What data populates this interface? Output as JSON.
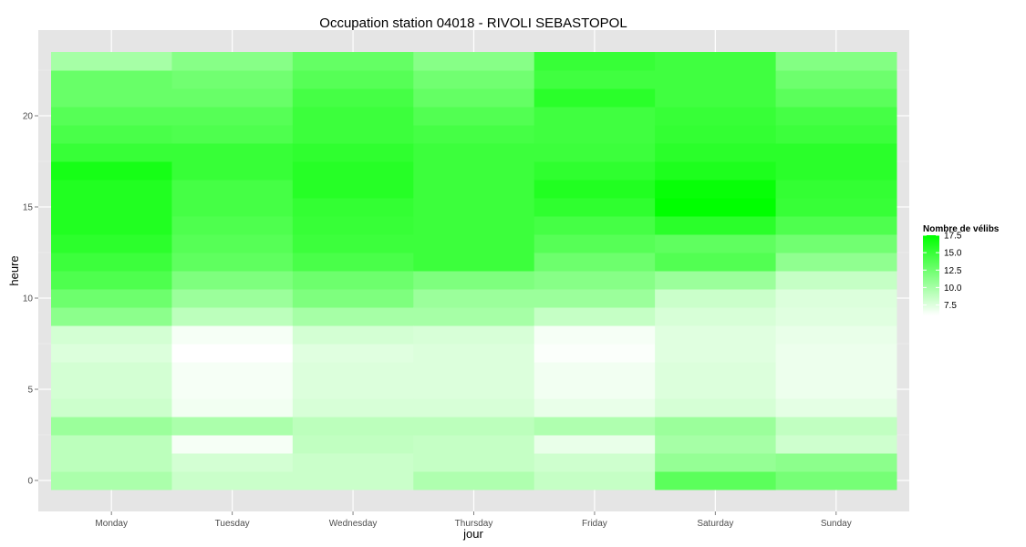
{
  "chart_data": {
    "type": "heatmap",
    "title": "Occupation station 04018 - RIVOLI SEBASTOPOL",
    "xlabel": "jour",
    "ylabel": "heure",
    "x_categories": [
      "Monday",
      "Tuesday",
      "Wednesday",
      "Thursday",
      "Friday",
      "Saturday",
      "Sunday"
    ],
    "y_categories": [
      0,
      1,
      2,
      3,
      4,
      5,
      6,
      7,
      8,
      9,
      10,
      11,
      12,
      13,
      14,
      15,
      16,
      17,
      18,
      19,
      20,
      21,
      22,
      23
    ],
    "y_ticks": [
      0,
      5,
      10,
      15,
      20
    ],
    "ylim": [
      -0.5,
      23.5
    ],
    "grid": true,
    "legend": {
      "title": "Nombre de vélibs",
      "position": "right",
      "min": 6,
      "max": 17.5,
      "breaks": [
        17.5,
        15.0,
        12.5,
        10.0,
        7.5
      ],
      "low_color": "#ffffff",
      "high_color": "#00ff00"
    },
    "values": {
      "Monday": [
        9.8,
        9.0,
        9.0,
        10.5,
        8.3,
        8.0,
        8.0,
        7.6,
        8.0,
        11.2,
        12.6,
        14.0,
        14.8,
        15.5,
        16.0,
        16.0,
        16.0,
        16.5,
        15.0,
        14.2,
        13.6,
        12.8,
        12.8,
        10.0
      ],
      "Tuesday": [
        8.4,
        8.0,
        6.4,
        9.8,
        6.6,
        6.4,
        6.4,
        6.0,
        6.4,
        9.0,
        10.5,
        11.8,
        13.2,
        13.6,
        14.0,
        14.4,
        14.4,
        15.0,
        15.0,
        14.0,
        13.6,
        12.8,
        12.4,
        11.4
      ],
      "Wednesday": [
        8.4,
        8.4,
        8.8,
        9.0,
        7.8,
        7.6,
        7.6,
        7.4,
        8.0,
        10.0,
        11.8,
        12.6,
        14.2,
        14.8,
        15.0,
        15.2,
        15.8,
        15.8,
        15.4,
        14.8,
        14.8,
        14.4,
        13.6,
        13.0
      ],
      "Thursday": [
        9.6,
        8.6,
        8.6,
        9.0,
        7.8,
        7.6,
        7.6,
        7.6,
        7.8,
        10.0,
        10.5,
        11.8,
        14.8,
        14.8,
        14.8,
        14.8,
        14.8,
        14.8,
        14.8,
        14.4,
        13.8,
        13.0,
        12.4,
        11.4
      ],
      "Friday": [
        8.6,
        8.2,
        7.0,
        9.6,
        7.0,
        6.6,
        6.6,
        6.2,
        6.4,
        8.6,
        10.5,
        11.4,
        12.6,
        13.6,
        14.4,
        15.4,
        16.0,
        15.4,
        14.8,
        14.6,
        14.6,
        15.6,
        14.6,
        15.0
      ],
      "Saturday": [
        13.4,
        10.8,
        10.0,
        10.5,
        7.9,
        7.6,
        7.6,
        7.4,
        7.4,
        7.8,
        8.4,
        10.5,
        13.8,
        13.2,
        15.6,
        17.5,
        17.2,
        16.2,
        15.6,
        15.2,
        15.0,
        14.6,
        14.6,
        14.6
      ],
      "Sunday": [
        12.2,
        11.2,
        8.2,
        8.8,
        7.2,
        6.8,
        6.8,
        6.8,
        7.0,
        7.4,
        7.6,
        8.6,
        11.0,
        12.4,
        14.0,
        15.0,
        15.2,
        15.6,
        15.6,
        14.8,
        14.4,
        13.4,
        12.6,
        11.6
      ]
    }
  }
}
